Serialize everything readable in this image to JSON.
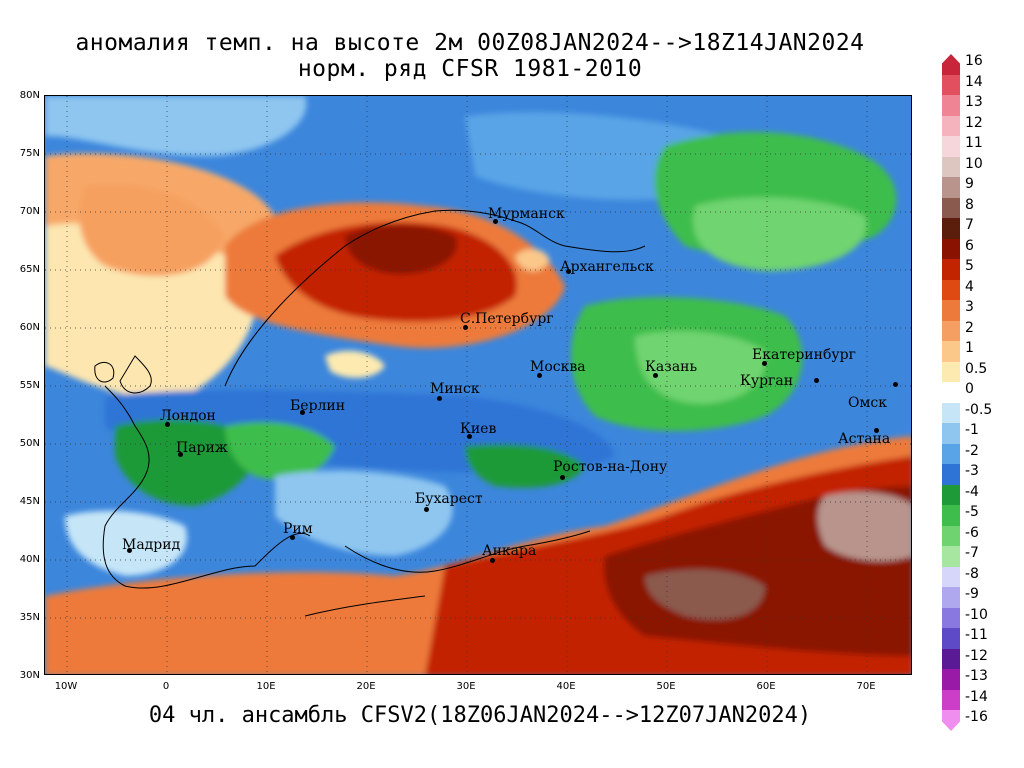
{
  "title": {
    "line1": "аномалия темп. на высоте 2м 00Z08JAN2024-->18Z14JAN2024",
    "line2": "норм. ряд CFSR 1981-2010"
  },
  "footer": "04 чл. ансамбль CFSV2(18Z06JAN2024-->12Z07JAN2024)",
  "map": {
    "lat_labels": [
      "80N",
      "75N",
      "70N",
      "65N",
      "60N",
      "55N",
      "50N",
      "45N",
      "40N",
      "35N",
      "30N"
    ],
    "lon_labels": [
      "10W",
      "0",
      "10E",
      "20E",
      "30E",
      "40E",
      "50E",
      "60E",
      "70E"
    ],
    "cities": [
      {
        "name": "Мурманск"
      },
      {
        "name": "Архангельск"
      },
      {
        "name": "С.Петербург"
      },
      {
        "name": "Москва"
      },
      {
        "name": "Казань"
      },
      {
        "name": "Екатеринбург"
      },
      {
        "name": "Курган"
      },
      {
        "name": "Омск"
      },
      {
        "name": "Астана"
      },
      {
        "name": "Минск"
      },
      {
        "name": "Берлин"
      },
      {
        "name": "Лондон"
      },
      {
        "name": "Париж"
      },
      {
        "name": "Киев"
      },
      {
        "name": "Ростов-на-Дону"
      },
      {
        "name": "Бухарест"
      },
      {
        "name": "Рим"
      },
      {
        "name": "Мадрид"
      },
      {
        "name": "Анкара"
      }
    ]
  },
  "legend": {
    "ticks": [
      "16",
      "14",
      "13",
      "12",
      "11",
      "10",
      "9",
      "8",
      "7",
      "6",
      "5",
      "4",
      "3",
      "2",
      "1",
      "0.5",
      "0",
      "-0.5",
      "-1",
      "-2",
      "-3",
      "-4",
      "-5",
      "-6",
      "-7",
      "-8",
      "-9",
      "-10",
      "-11",
      "-12",
      "-13",
      "-14",
      "-16"
    ],
    "colors": [
      "#c8243a",
      "#e25060",
      "#ee8494",
      "#f5b3bd",
      "#f6d6da",
      "#ddc5c0",
      "#b8948c",
      "#8b5a4e",
      "#5c1e0c",
      "#8a1200",
      "#c22400",
      "#de4a12",
      "#ed7a3a",
      "#f5a062",
      "#fbc88a",
      "#fdeab0",
      "#ffffff",
      "#c6e6f8",
      "#8ec6f0",
      "#58a4e6",
      "#2d74d6",
      "#1e9a38",
      "#3ebd4c",
      "#6fd470",
      "#a6e6a0",
      "#d6d6fa",
      "#b0a8ee",
      "#8878e0",
      "#5e4ac6",
      "#5a1a96",
      "#9a1aa8",
      "#cc3ec8",
      "#f08ef0"
    ]
  }
}
